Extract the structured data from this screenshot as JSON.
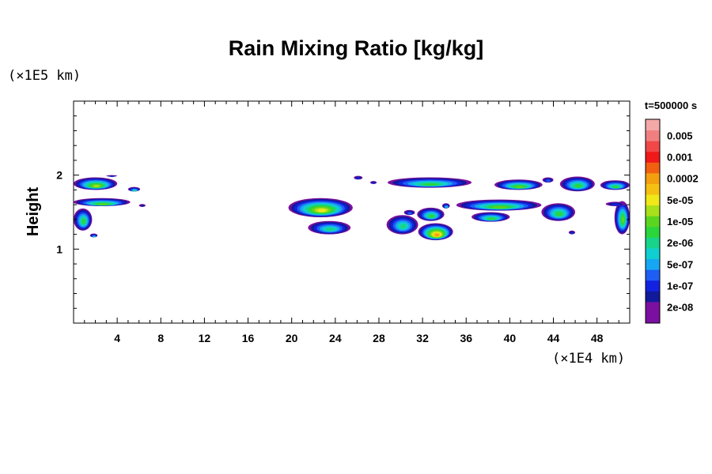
{
  "chart_data": {
    "type": "heatmap",
    "title": "Rain Mixing Ratio [kg/kg]",
    "ylabel": "Height",
    "x_multiplier": "(×1E4 km)",
    "y_multiplier": "(×1E5 km)",
    "time_label": "t=500000 s",
    "xlim": [
      0,
      51
    ],
    "ylim": [
      0,
      3
    ],
    "x_ticks": [
      4,
      8,
      12,
      16,
      20,
      24,
      28,
      32,
      36,
      40,
      44,
      48
    ],
    "y_ticks": [
      1,
      2
    ],
    "colorbar": [
      {
        "label": "",
        "color": "#7a0fa0"
      },
      {
        "label": "2e-08",
        "color": "#7a0fa0"
      },
      {
        "label": "",
        "color": "#101a9a"
      },
      {
        "label": "1e-07",
        "color": "#1222e0"
      },
      {
        "label": "",
        "color": "#1e5ef4"
      },
      {
        "label": "5e-07",
        "color": "#16a6f2"
      },
      {
        "label": "",
        "color": "#10cfd0"
      },
      {
        "label": "2e-06",
        "color": "#18d48a"
      },
      {
        "label": "",
        "color": "#2ad63c"
      },
      {
        "label": "1e-05",
        "color": "#5ad620"
      },
      {
        "label": "",
        "color": "#a8e01a"
      },
      {
        "label": "5e-05",
        "color": "#f0e818"
      },
      {
        "label": "",
        "color": "#f6c012"
      },
      {
        "label": "0.0002",
        "color": "#f2a010"
      },
      {
        "label": "",
        "color": "#f06010"
      },
      {
        "label": "0.001",
        "color": "#f01818"
      },
      {
        "label": "",
        "color": "#f04848"
      },
      {
        "label": "0.005",
        "color": "#f08080"
      },
      {
        "label": "",
        "color": "#f4a8a8"
      }
    ],
    "cloud_regions": [
      {
        "x": [
          0.0,
          4.0
        ],
        "y": [
          1.8,
          1.97
        ],
        "peak": 10
      },
      {
        "x": [
          3.0,
          4.0
        ],
        "y": [
          1.98,
          2.0
        ],
        "peak": 3
      },
      {
        "x": [
          0.0,
          5.2
        ],
        "y": [
          1.58,
          1.69
        ],
        "peak": 9
      },
      {
        "x": [
          0.0,
          1.7
        ],
        "y": [
          1.25,
          1.55
        ],
        "peak": 8
      },
      {
        "x": [
          1.5,
          2.2
        ],
        "y": [
          1.16,
          1.21
        ],
        "peak": 6
      },
      {
        "x": [
          5.0,
          6.1
        ],
        "y": [
          1.78,
          1.84
        ],
        "peak": 7
      },
      {
        "x": [
          6.0,
          6.6
        ],
        "y": [
          1.57,
          1.61
        ],
        "peak": 2
      },
      {
        "x": [
          19.7,
          25.6
        ],
        "y": [
          1.43,
          1.69
        ],
        "peak": 11
      },
      {
        "x": [
          21.5,
          25.4
        ],
        "y": [
          1.2,
          1.38
        ],
        "peak": 7
      },
      {
        "x": [
          25.7,
          26.5
        ],
        "y": [
          1.94,
          1.99
        ],
        "peak": 3
      },
      {
        "x": [
          27.2,
          27.8
        ],
        "y": [
          1.88,
          1.92
        ],
        "peak": 3
      },
      {
        "x": [
          28.8,
          36.5
        ],
        "y": [
          1.83,
          1.97
        ],
        "peak": 8
      },
      {
        "x": [
          28.7,
          31.6
        ],
        "y": [
          1.2,
          1.46
        ],
        "peak": 7
      },
      {
        "x": [
          30.3,
          31.3
        ],
        "y": [
          1.46,
          1.53
        ],
        "peak": 4
      },
      {
        "x": [
          31.5,
          34.0
        ],
        "y": [
          1.38,
          1.56
        ],
        "peak": 8
      },
      {
        "x": [
          31.6,
          34.8
        ],
        "y": [
          1.12,
          1.35
        ],
        "peak": 13
      },
      {
        "x": [
          33.8,
          34.5
        ],
        "y": [
          1.55,
          1.62
        ],
        "peak": 6
      },
      {
        "x": [
          35.1,
          42.9
        ],
        "y": [
          1.52,
          1.67
        ],
        "peak": 9
      },
      {
        "x": [
          36.5,
          40.0
        ],
        "y": [
          1.37,
          1.5
        ],
        "peak": 8
      },
      {
        "x": [
          38.6,
          43.0
        ],
        "y": [
          1.8,
          1.94
        ],
        "peak": 9
      },
      {
        "x": [
          42.9,
          46.0
        ],
        "y": [
          1.38,
          1.62
        ],
        "peak": 8
      },
      {
        "x": [
          43.0,
          44.0
        ],
        "y": [
          1.9,
          1.97
        ],
        "peak": 4
      },
      {
        "x": [
          44.6,
          47.8
        ],
        "y": [
          1.78,
          1.98
        ],
        "peak": 8
      },
      {
        "x": [
          48.3,
          51.0
        ],
        "y": [
          1.8,
          1.93
        ],
        "peak": 8
      },
      {
        "x": [
          49.6,
          51.0
        ],
        "y": [
          1.2,
          1.65
        ],
        "peak": 9
      },
      {
        "x": [
          48.8,
          50.6
        ],
        "y": [
          1.58,
          1.64
        ],
        "peak": 3
      },
      {
        "x": [
          45.4,
          46.0
        ],
        "y": [
          1.2,
          1.25
        ],
        "peak": 3
      }
    ]
  }
}
